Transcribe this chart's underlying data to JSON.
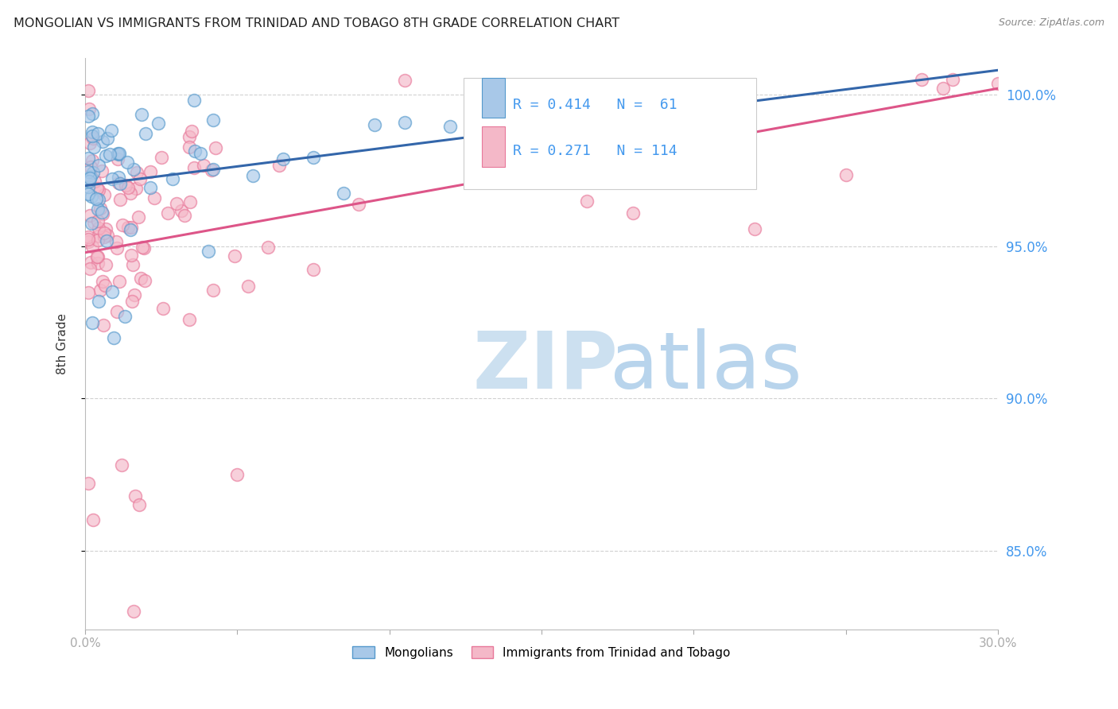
{
  "title": "MONGOLIAN VS IMMIGRANTS FROM TRINIDAD AND TOBAGO 8TH GRADE CORRELATION CHART",
  "source": "Source: ZipAtlas.com",
  "ylabel": "8th Grade",
  "y_ticks": [
    0.85,
    0.9,
    0.95,
    1.0
  ],
  "y_tick_labels": [
    "85.0%",
    "90.0%",
    "95.0%",
    "100.0%"
  ],
  "x_min": 0.0,
  "x_max": 0.3,
  "y_min": 0.824,
  "y_max": 1.012,
  "legend_blue_label": "Mongolians",
  "legend_pink_label": "Immigrants from Trinidad and Tobago",
  "R_blue": 0.414,
  "N_blue": 61,
  "R_pink": 0.271,
  "N_pink": 114,
  "blue_color": "#a8c8e8",
  "pink_color": "#f4b8c8",
  "blue_edge_color": "#5599cc",
  "pink_edge_color": "#e8789a",
  "blue_line_color": "#3366aa",
  "pink_line_color": "#dd5588",
  "watermark_zip_color": "#cce0f0",
  "watermark_atlas_color": "#b8d4ec",
  "background_color": "#ffffff",
  "grid_color": "#cccccc",
  "title_color": "#222222",
  "right_axis_color": "#4499ee",
  "blue_trend_x0": 0.0,
  "blue_trend_y0": 0.97,
  "blue_trend_x1": 0.3,
  "blue_trend_y1": 1.008,
  "pink_trend_x0": 0.0,
  "pink_trend_y0": 0.948,
  "pink_trend_x1": 0.3,
  "pink_trend_y1": 1.002
}
